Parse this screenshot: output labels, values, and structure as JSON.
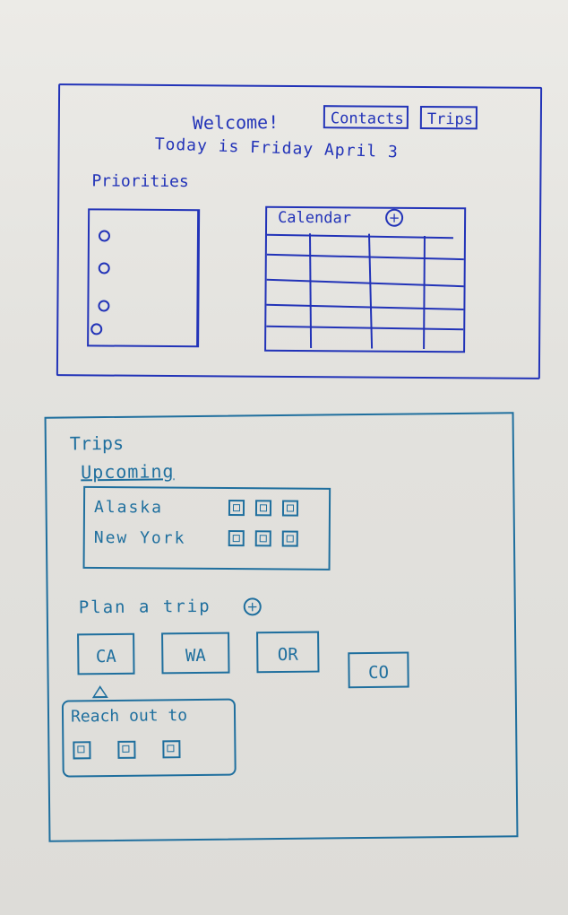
{
  "home": {
    "welcome": "Welcome!",
    "nav": {
      "contacts_label": "Contacts",
      "trips_label": "Trips"
    },
    "today_text": "Today is Friday April 3",
    "priorities": {
      "title": "Priorities",
      "items": [
        "",
        "",
        "",
        ""
      ]
    },
    "calendar": {
      "title": "Calendar",
      "add_icon": "plus-icon"
    }
  },
  "trips_page": {
    "title": "Trips",
    "upcoming": {
      "title": "Upcoming",
      "trips": [
        {
          "name": "Alaska",
          "contacts": 3
        },
        {
          "name": "New York",
          "contacts": 3
        }
      ]
    },
    "plan": {
      "title": "Plan a trip",
      "add_icon": "plus-icon",
      "states": [
        "CA",
        "WA",
        "OR",
        "CO"
      ]
    },
    "reach_out": {
      "title": "Reach out to",
      "contacts": 3
    }
  },
  "colors": {
    "ink_blue": "#2233b8",
    "ink_teal": "#1f6f9e",
    "paper": "#e6e5e1"
  }
}
